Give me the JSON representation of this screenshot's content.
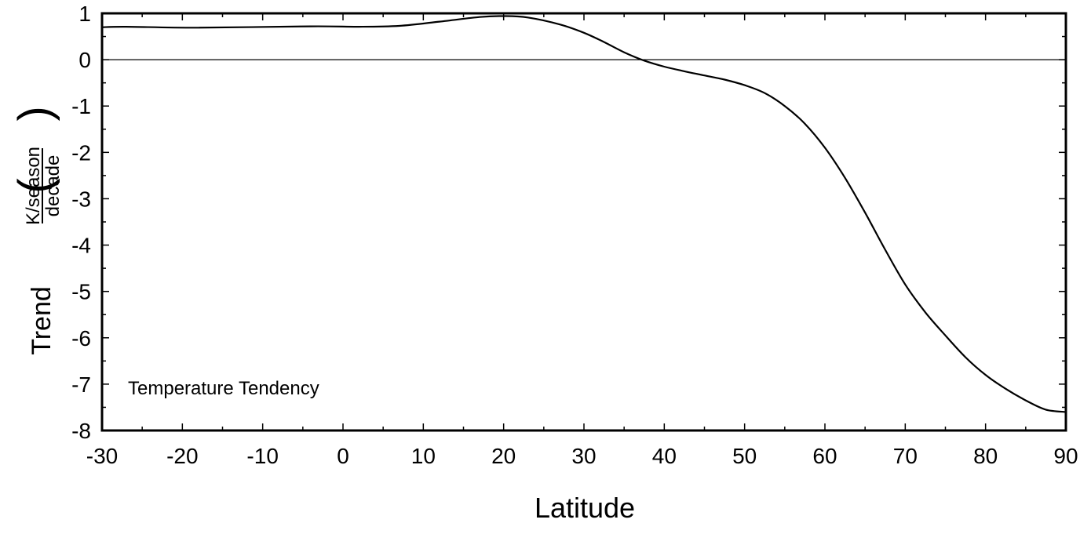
{
  "chart_data": {
    "type": "line",
    "title": "",
    "xlabel": "Latitude",
    "ylabel": {
      "prefix": "Trend",
      "numerator": "K/season",
      "denominator": "decade"
    },
    "annotation": "Temperature Tendency",
    "xlim": [
      -30,
      90
    ],
    "ylim": [
      -8,
      1
    ],
    "xticks": [
      -30,
      -20,
      -10,
      0,
      10,
      20,
      30,
      40,
      50,
      60,
      70,
      80,
      90
    ],
    "yticks": [
      1,
      0,
      -1,
      -2,
      -3,
      -4,
      -5,
      -6,
      -7,
      -8
    ],
    "zero_line": true,
    "grid": false,
    "series": [
      {
        "color": "#000000",
        "x": [
          -30,
          -27,
          -18,
          -4,
          2,
          7,
          12,
          17,
          20,
          23,
          27,
          30,
          32.5,
          35,
          37.5,
          40,
          42.5,
          45,
          47.5,
          50,
          52.5,
          55,
          57.5,
          60,
          62.5,
          65,
          67.5,
          70,
          72.5,
          75,
          77.5,
          80,
          82.5,
          85,
          87.5,
          90
        ],
        "y": [
          0.7,
          0.71,
          0.69,
          0.72,
          0.71,
          0.73,
          0.82,
          0.92,
          0.94,
          0.91,
          0.76,
          0.58,
          0.38,
          0.16,
          -0.02,
          -0.15,
          -0.25,
          -0.34,
          -0.43,
          -0.55,
          -0.72,
          -1.0,
          -1.38,
          -1.9,
          -2.55,
          -3.3,
          -4.1,
          -4.85,
          -5.45,
          -5.95,
          -6.42,
          -6.8,
          -7.1,
          -7.35,
          -7.55,
          -7.6
        ]
      }
    ]
  }
}
